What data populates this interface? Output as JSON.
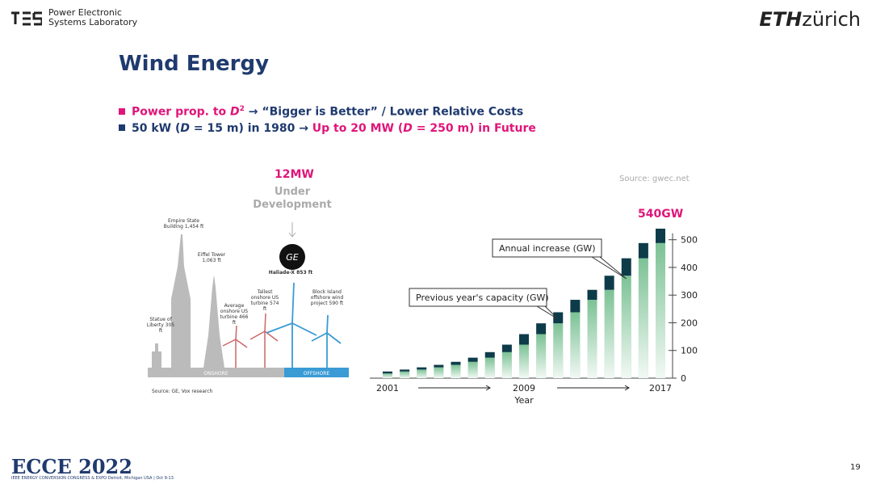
{
  "header": {
    "lab": "Power Electronic Systems Laboratory",
    "logo_bold": "ETH",
    "logo_rest": "zürich"
  },
  "title": "Wind Energy",
  "bullets": [
    [
      "Power prop. to ",
      "D",
      "2",
      " → “Bigger is Better” / Lower Relative Costs"
    ],
    [
      "50 kW (",
      "D",
      " = 15 m) in 1980 → ",
      "Up to 20 MW (",
      "D",
      " = 250 m) in Future"
    ]
  ],
  "illustration": {
    "headline": "12MW",
    "status": "Under Development",
    "labels": [
      "Haliade-X 853 ft",
      "Empire State Building 1,454 ft",
      "Eiffel Tower 1,063 ft",
      "Statue of Liberty 305 ft",
      "Average onshore US turbine 466 ft",
      "Tallest onshore US turbine 574 ft",
      "Block Island offshore wind project 590 ft"
    ],
    "onshore": "ONSHORE",
    "offshore": "OFFSHORE",
    "source": "Source: GE, Vox research"
  },
  "chart_data": {
    "type": "bar",
    "stacked": true,
    "source": "Source: gwec.net",
    "annotation": "540GW",
    "x_label": "Year",
    "categories": [
      "2001",
      null,
      null,
      null,
      null,
      null,
      null,
      null,
      "2009",
      null,
      null,
      null,
      null,
      null,
      null,
      null,
      "2017"
    ],
    "series": [
      {
        "name": "Previous year's capacity (GW)",
        "color": "#7cc295",
        "values": [
          17,
          24,
          31,
          39,
          48,
          59,
          74,
          94,
          121,
          159,
          198,
          238,
          283,
          319,
          370,
          433,
          488
        ]
      },
      {
        "name": "Annual increase (GW)",
        "color": "#0d3b4a",
        "values": [
          7,
          7,
          8,
          9,
          11,
          15,
          20,
          27,
          38,
          39,
          40,
          45,
          36,
          51,
          63,
          55,
          52
        ]
      }
    ],
    "ylim": [
      0,
      540
    ],
    "yticks": [
      0,
      100,
      200,
      300,
      400,
      500
    ]
  },
  "footer": {
    "event": "ECCE 2022",
    "event_detail": "IEEE ENERGY CONVERSION CONGRESS & EXPO Detroit, Michigan USA | Oct 9-13",
    "page": "19"
  }
}
